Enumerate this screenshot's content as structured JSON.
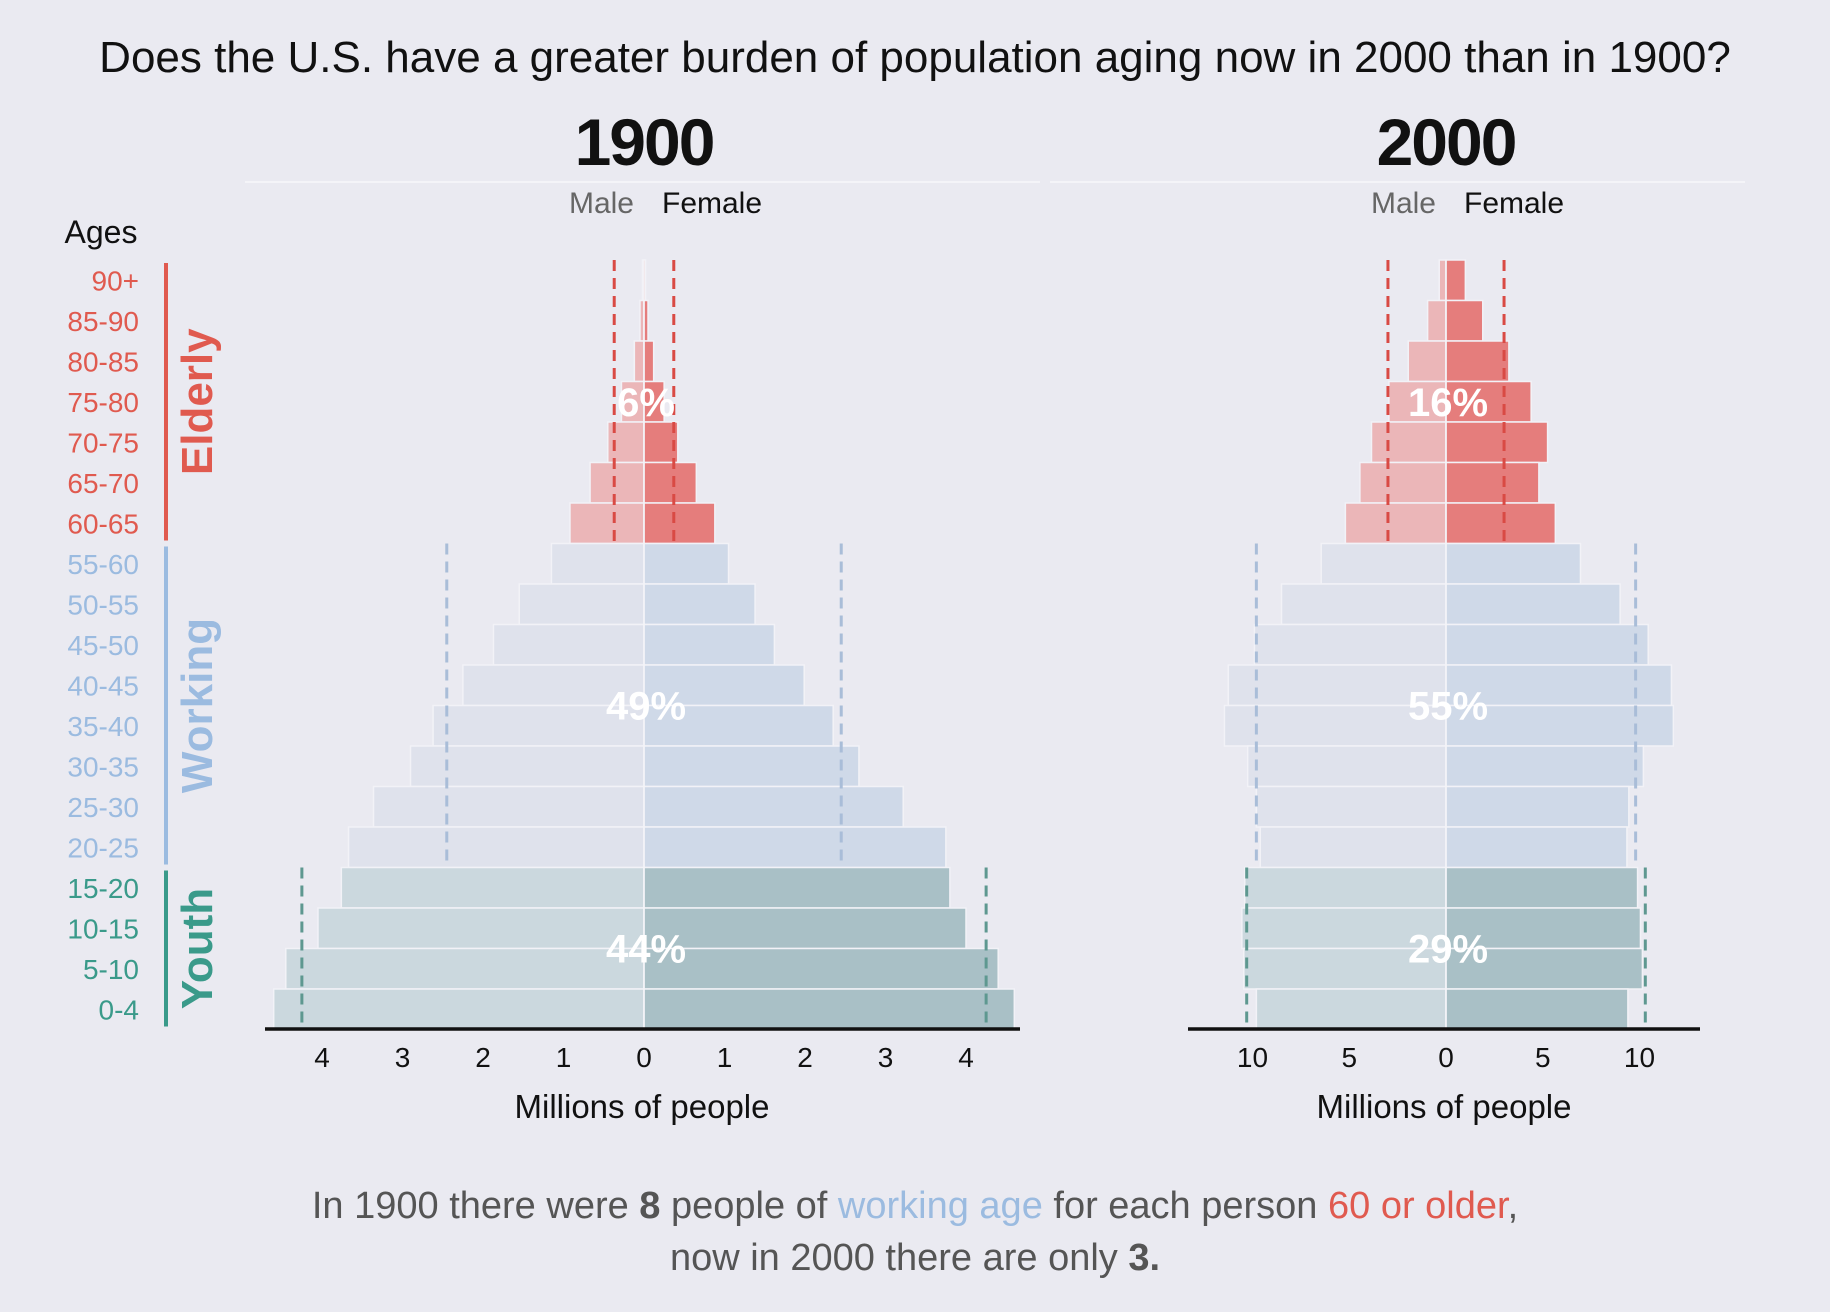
{
  "title": "Does the U.S. have a greater burden of population aging now in 2000 than in 1900?",
  "ages_header": "Ages",
  "age_groups": [
    "90+",
    "85-90",
    "80-85",
    "75-80",
    "70-75",
    "65-70",
    "60-65",
    "55-60",
    "50-55",
    "45-50",
    "40-45",
    "35-40",
    "30-35",
    "25-30",
    "20-25",
    "15-20",
    "10-15",
    "5-10",
    "0-4"
  ],
  "group_labels": {
    "elderly": "Elderly",
    "working": "Working",
    "youth": "Youth"
  },
  "colors": {
    "background": "#eaeaf1",
    "elderly": "#e05a4f",
    "working": "#9bbbe0",
    "youth": "#3a9a8a",
    "elderly_female": "#e57d7c",
    "elderly_male": "#ebb6b8",
    "working_female": "#cfd9e8",
    "working_male": "#dfe2ec",
    "youth_female": "#a9c0c6",
    "youth_male": "#cbd8de"
  },
  "chart_data": [
    {
      "type": "bar",
      "orientation": "horizontal-population-pyramid",
      "title": "1900",
      "sex_labels": {
        "male": "Male",
        "female": "Female"
      },
      "xlabel": "Millions of people",
      "xlim": [
        -4.75,
        4.75
      ],
      "xticks": [
        -4,
        -3,
        -2,
        -1,
        0,
        1,
        2,
        3,
        4
      ],
      "tick_labels": [
        "4",
        "3",
        "2",
        "1",
        "0",
        "1",
        "2",
        "3",
        "4"
      ],
      "categories": [
        "90+",
        "85-90",
        "80-85",
        "75-80",
        "70-75",
        "65-70",
        "60-65",
        "55-60",
        "50-55",
        "45-50",
        "40-45",
        "35-40",
        "30-35",
        "25-30",
        "20-25",
        "15-20",
        "10-15",
        "5-10",
        "0-4"
      ],
      "series": [
        {
          "name": "Male",
          "values": [
            0.02,
            0.05,
            0.12,
            0.28,
            0.45,
            0.67,
            0.92,
            1.15,
            1.55,
            1.87,
            2.25,
            2.62,
            2.9,
            3.36,
            3.67,
            3.76,
            4.05,
            4.45,
            4.6
          ]
        },
        {
          "name": "Female",
          "values": [
            0.02,
            0.05,
            0.12,
            0.25,
            0.42,
            0.65,
            0.88,
            1.05,
            1.38,
            1.62,
            1.99,
            2.35,
            2.67,
            3.22,
            3.75,
            3.8,
            4.0,
            4.4,
            4.6
          ]
        }
      ],
      "reference_lines": {
        "elderly": 0.37,
        "working": 2.45,
        "youth": 4.25
      },
      "group_shares": {
        "elderly": "6%",
        "working": "49%",
        "youth": "44%"
      }
    },
    {
      "type": "bar",
      "orientation": "horizontal-population-pyramid",
      "title": "2000",
      "sex_labels": {
        "male": "Male",
        "female": "Female"
      },
      "xlabel": "Millions of people",
      "xlim": [
        -13,
        13
      ],
      "xticks": [
        -10,
        -5,
        0,
        5,
        10
      ],
      "tick_labels": [
        "10",
        "5",
        "0",
        "5",
        "10"
      ],
      "categories": [
        "90+",
        "85-90",
        "80-85",
        "75-80",
        "70-75",
        "65-70",
        "60-65",
        "55-60",
        "50-55",
        "45-50",
        "40-45",
        "35-40",
        "30-35",
        "25-30",
        "20-25",
        "15-20",
        "10-15",
        "5-10",
        "0-4"
      ],
      "series": [
        {
          "name": "Male",
          "values": [
            0.35,
            0.95,
            1.95,
            2.95,
            3.85,
            4.45,
            5.2,
            6.45,
            8.5,
            9.9,
            11.25,
            11.45,
            10.25,
            9.8,
            9.6,
            10.4,
            10.55,
            10.45,
            9.8
          ]
        },
        {
          "name": "Female",
          "values": [
            1.0,
            1.9,
            3.25,
            4.4,
            5.25,
            4.8,
            5.65,
            6.95,
            9.0,
            10.45,
            11.65,
            11.75,
            10.2,
            9.45,
            9.35,
            9.9,
            10.05,
            10.15,
            9.4
          ]
        }
      ],
      "reference_lines": {
        "elderly": 3.0,
        "working": 9.8,
        "youth": 10.3
      },
      "group_shares": {
        "elderly": "16%",
        "working": "55%",
        "youth": "29%"
      }
    }
  ],
  "footnote": {
    "line1": [
      {
        "text": "In 1900 there were ",
        "style": "normal"
      },
      {
        "text": "8",
        "style": "bold"
      },
      {
        "text": " people of ",
        "style": "normal"
      },
      {
        "text": "working age",
        "style": "working"
      },
      {
        "text": " for each person ",
        "style": "normal"
      },
      {
        "text": "60 or older",
        "style": "elderly"
      },
      {
        "text": ",",
        "style": "normal"
      }
    ],
    "line2": [
      {
        "text": "now in 2000 there are only ",
        "style": "normal"
      },
      {
        "text": "3.",
        "style": "bold"
      }
    ]
  }
}
